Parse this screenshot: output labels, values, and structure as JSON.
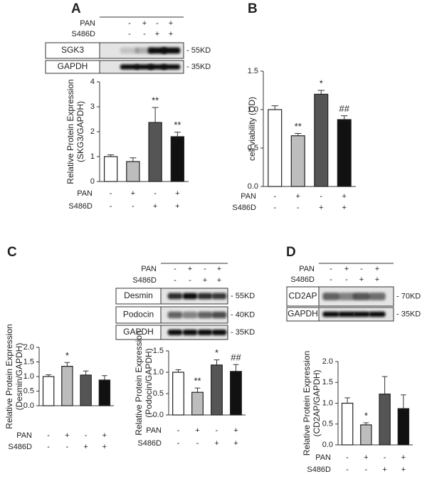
{
  "panels": [
    "A",
    "B",
    "C",
    "D"
  ],
  "blots": [
    {
      "conditions": [
        {
          "name": "PAN",
          "signs": [
            "-",
            "+",
            "-",
            "+"
          ]
        },
        {
          "name": "S486D",
          "signs": [
            "-",
            "-",
            "+",
            "+"
          ]
        }
      ],
      "bands": [
        {
          "name": "SGK3",
          "size": "- 55KD"
        },
        {
          "name": "GAPDH",
          "size": "- 35KD"
        }
      ]
    },
    {
      "conditions": [
        {
          "name": "PAN",
          "signs": [
            "-",
            "+",
            "-",
            "+"
          ]
        },
        {
          "name": "S486D",
          "signs": [
            "-",
            "-",
            "+",
            "+"
          ]
        }
      ],
      "bands": [
        {
          "name": "Desmin",
          "size": "- 55KD"
        },
        {
          "name": "Podocin",
          "size": "- 40KD"
        },
        {
          "name": "GAPDH",
          "size": "- 35KD"
        }
      ]
    },
    {
      "conditions": [
        {
          "name": "PAN",
          "signs": [
            "-",
            "+",
            "-",
            "+"
          ]
        },
        {
          "name": "S486D",
          "signs": [
            "-",
            "-",
            "+",
            "+"
          ]
        }
      ],
      "bands": [
        {
          "name": "CD2AP",
          "size": "- 70KD"
        },
        {
          "name": "GAPDH",
          "size": "- 35KD"
        }
      ]
    }
  ],
  "chart_data": [
    {
      "type": "bar",
      "ylabel": [
        "Relative Protein Expression",
        "(SKG3/GAPDH)"
      ],
      "values": [
        1.0,
        0.8,
        2.37,
        1.8
      ],
      "errors": [
        0.07,
        0.15,
        0.6,
        0.18
      ],
      "colors": [
        "#ffffff",
        "#bdbdbd",
        "#555555",
        "#111111"
      ],
      "annotations": [
        null,
        null,
        "**",
        "**"
      ],
      "conditions": [
        {
          "name": "PAN",
          "signs": [
            "-",
            "+",
            "-",
            "+"
          ]
        },
        {
          "name": "S486D",
          "signs": [
            "-",
            "-",
            "+",
            "+"
          ]
        }
      ],
      "ylim": [
        0,
        4
      ],
      "yticks": [
        0,
        1,
        2,
        3,
        4
      ]
    },
    {
      "type": "bar",
      "ylabel": [
        "cell viability (OD)"
      ],
      "values": [
        1.0,
        0.66,
        1.2,
        0.87
      ],
      "errors": [
        0.05,
        0.03,
        0.05,
        0.05
      ],
      "colors": [
        "#ffffff",
        "#bdbdbd",
        "#555555",
        "#111111"
      ],
      "annotations": [
        null,
        "**",
        "*",
        "##"
      ],
      "conditions": [
        {
          "name": "PAN",
          "signs": [
            "-",
            "+",
            "-",
            "+"
          ]
        },
        {
          "name": "S486D",
          "signs": [
            "-",
            "-",
            "+",
            "+"
          ]
        }
      ],
      "ylim": [
        0,
        1.5
      ],
      "yticks": [
        {
          "value": 0,
          "label": "0.0"
        },
        0.5,
        {
          "value": 1,
          "label": "1.0"
        },
        1.5
      ]
    },
    {
      "type": "bar",
      "ylabel": [
        "Relative Protein Expression",
        "(Desmin/GAPDH)"
      ],
      "values": [
        1.0,
        1.35,
        1.05,
        0.88
      ],
      "errors": [
        0.06,
        0.13,
        0.14,
        0.15
      ],
      "colors": [
        "#ffffff",
        "#bdbdbd",
        "#555555",
        "#111111"
      ],
      "annotations": [
        null,
        "*",
        null,
        null
      ],
      "conditions": [
        {
          "name": "PAN",
          "signs": [
            "-",
            "+",
            "-",
            "+"
          ]
        },
        {
          "name": "S486D",
          "signs": [
            "-",
            "-",
            "+",
            "+"
          ]
        }
      ],
      "ylim": [
        0,
        2
      ],
      "yticks": [
        {
          "value": 0,
          "label": "0.0"
        },
        0.5,
        {
          "value": 1,
          "label": "1.0"
        },
        1.5,
        {
          "value": 2,
          "label": "2.0"
        }
      ]
    },
    {
      "type": "bar",
      "ylabel": [
        "Relative Protein Expression",
        "(Podocin/GAPDH)"
      ],
      "values": [
        1.0,
        0.53,
        1.17,
        1.02
      ],
      "errors": [
        0.06,
        0.1,
        0.12,
        0.16
      ],
      "colors": [
        "#ffffff",
        "#bdbdbd",
        "#555555",
        "#111111"
      ],
      "annotations": [
        null,
        "**",
        "*",
        "##"
      ],
      "conditions": [
        {
          "name": "PAN",
          "signs": [
            "-",
            "+",
            "-",
            "+"
          ]
        },
        {
          "name": "S486D",
          "signs": [
            "-",
            "-",
            "+",
            "+"
          ]
        }
      ],
      "ylim": [
        0,
        1.5
      ],
      "yticks": [
        {
          "value": 0,
          "label": "0.0"
        },
        0.5,
        {
          "value": 1,
          "label": "1.0"
        },
        1.5
      ]
    },
    {
      "type": "bar",
      "ylabel": [
        "Relative Protein Expression",
        "(CD2AP/GAPDH)"
      ],
      "values": [
        1.0,
        0.48,
        1.22,
        0.87
      ],
      "errors": [
        0.13,
        0.05,
        0.42,
        0.33
      ],
      "colors": [
        "#ffffff",
        "#bdbdbd",
        "#555555",
        "#111111"
      ],
      "annotations": [
        null,
        "*",
        null,
        null
      ],
      "conditions": [
        {
          "name": "PAN",
          "signs": [
            "-",
            "+",
            "-",
            "+"
          ]
        },
        {
          "name": "S486D",
          "signs": [
            "-",
            "-",
            "+",
            "+"
          ]
        }
      ],
      "ylim": [
        0,
        2
      ],
      "yticks": [
        {
          "value": 0,
          "label": "0.0"
        },
        0.5,
        {
          "value": 1,
          "label": "1.0"
        },
        1.5,
        {
          "value": 2,
          "label": "2.0"
        }
      ]
    }
  ]
}
